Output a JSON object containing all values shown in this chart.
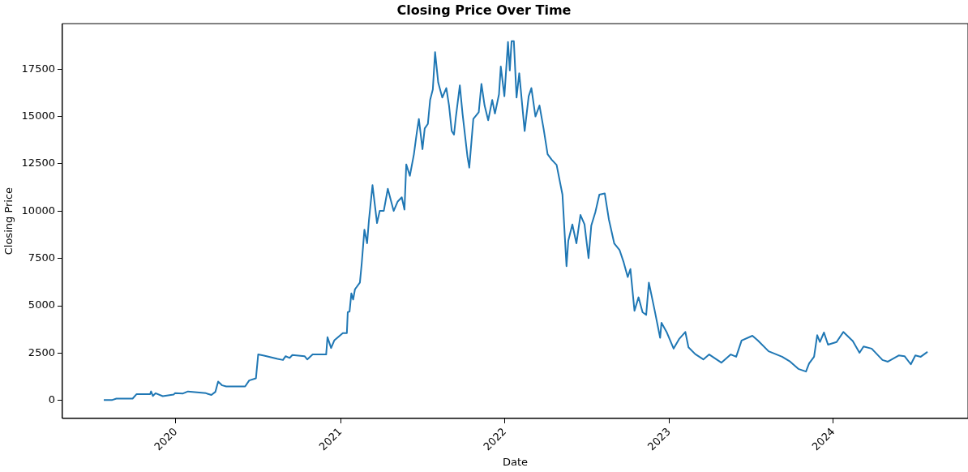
{
  "chart_data": {
    "type": "line",
    "title": "Closing Price Over Time",
    "xlabel": "Date",
    "ylabel": "Closing Price",
    "x": [
      "2019-07-25",
      "2019-08-13",
      "2019-08-22",
      "2019-09-27",
      "2019-10-06",
      "2019-11-05",
      "2019-11-07",
      "2019-11-11",
      "2019-11-17",
      "2019-12-03",
      "2019-12-27",
      "2019-12-30",
      "2020-01-17",
      "2020-01-28",
      "2020-03-08",
      "2020-03-20",
      "2020-03-29",
      "2020-04-04",
      "2020-04-13",
      "2020-04-22",
      "2020-06-03",
      "2020-06-12",
      "2020-06-27",
      "2020-07-02",
      "2020-07-15",
      "2020-08-14",
      "2020-08-26",
      "2020-09-01",
      "2020-09-10",
      "2020-09-16",
      "2020-10-13",
      "2020-10-19",
      "2020-10-31",
      "2020-11-30",
      "2020-12-03",
      "2020-12-11",
      "2020-12-18",
      "2021-01-06",
      "2021-01-15",
      "2021-01-17",
      "2021-01-21",
      "2021-01-25",
      "2021-01-29",
      "2021-02-02",
      "2021-02-13",
      "2021-02-17",
      "2021-02-23",
      "2021-03-01",
      "2021-03-05",
      "2021-03-13",
      "2021-03-23",
      "2021-03-29",
      "2021-04-07",
      "2021-04-16",
      "2021-04-29",
      "2021-05-08",
      "2021-05-17",
      "2021-05-23",
      "2021-05-27",
      "2021-06-04",
      "2021-06-13",
      "2021-06-19",
      "2021-06-24",
      "2021-07-02",
      "2021-07-07",
      "2021-07-14",
      "2021-07-19",
      "2021-07-25",
      "2021-07-30",
      "2021-08-06",
      "2021-08-15",
      "2021-08-24",
      "2021-08-30",
      "2021-09-05",
      "2021-09-10",
      "2021-09-14",
      "2021-09-20",
      "2021-09-23",
      "2021-09-29",
      "2021-10-10",
      "2021-10-14",
      "2021-10-23",
      "2021-11-04",
      "2021-11-10",
      "2021-11-17",
      "2021-11-25",
      "2021-12-04",
      "2021-12-10",
      "2021-12-19",
      "2021-12-23",
      "2021-12-31",
      "2022-01-08",
      "2022-01-12",
      "2022-01-16",
      "2022-01-21",
      "2022-01-27",
      "2022-02-02",
      "2022-02-14",
      "2022-02-23",
      "2022-03-01",
      "2022-03-10",
      "2022-03-19",
      "2022-03-28",
      "2022-04-06",
      "2022-04-15",
      "2022-04-26",
      "2022-05-09",
      "2022-05-18",
      "2022-05-22",
      "2022-05-31",
      "2022-06-09",
      "2022-06-18",
      "2022-06-27",
      "2022-07-06",
      "2022-07-12",
      "2022-07-21",
      "2022-07-30",
      "2022-08-11",
      "2022-08-20",
      "2022-09-01",
      "2022-09-13",
      "2022-09-22",
      "2022-10-01",
      "2022-10-07",
      "2022-10-16",
      "2022-10-25",
      "2022-11-03",
      "2022-11-11",
      "2022-11-17",
      "2022-11-30",
      "2022-12-12",
      "2022-12-15",
      "2022-12-27",
      "2023-01-11",
      "2023-01-23",
      "2023-02-06",
      "2023-02-13",
      "2023-02-28",
      "2023-03-18",
      "2023-03-31",
      "2023-04-27",
      "2023-05-18",
      "2023-05-30",
      "2023-06-11",
      "2023-07-05",
      "2023-07-17",
      "2023-08-10",
      "2023-09-09",
      "2023-09-27",
      "2023-10-15",
      "2023-11-01",
      "2023-11-08",
      "2023-11-19",
      "2023-11-26",
      "2023-12-02",
      "2023-12-11",
      "2023-12-20",
      "2024-01-08",
      "2024-01-23",
      "2024-02-13",
      "2024-02-28",
      "2024-03-08",
      "2024-03-26",
      "2024-04-19",
      "2024-05-01",
      "2024-05-25",
      "2024-06-07",
      "2024-06-21",
      "2024-07-01",
      "2024-07-13",
      "2024-07-28"
    ],
    "series": [
      {
        "color": "#1f77b4",
        "values": [
          30,
          30,
          100,
          100,
          340,
          340,
          480,
          240,
          385,
          230,
          310,
          385,
          370,
          480,
          385,
          290,
          460,
          1000,
          800,
          740,
          740,
          1060,
          1170,
          2430,
          2370,
          2200,
          2140,
          2340,
          2250,
          2400,
          2340,
          2170,
          2430,
          2430,
          3340,
          2770,
          3170,
          3560,
          3560,
          4660,
          4700,
          5660,
          5330,
          5870,
          6230,
          7230,
          9020,
          8300,
          9510,
          11370,
          9370,
          10010,
          10010,
          11180,
          10010,
          10510,
          10730,
          10080,
          12470,
          11870,
          13010,
          14080,
          14870,
          13270,
          14370,
          14610,
          15870,
          16430,
          18400,
          16790,
          16000,
          16500,
          15580,
          14230,
          14040,
          14930,
          16070,
          16640,
          15150,
          12870,
          12300,
          14870,
          15220,
          16720,
          15580,
          14800,
          15870,
          15150,
          16170,
          17640,
          16070,
          18930,
          17430,
          18980,
          18980,
          16000,
          17280,
          14230,
          16070,
          16500,
          15000,
          15580,
          14370,
          13010,
          12720,
          12440,
          10870,
          7090,
          8440,
          9300,
          8300,
          9800,
          9300,
          7520,
          9230,
          9940,
          10870,
          10940,
          9580,
          8300,
          7940,
          7300,
          6520,
          6940,
          4740,
          5450,
          4660,
          4520,
          6230,
          4740,
          3310,
          4100,
          3590,
          2740,
          3240,
          3620,
          2810,
          2450,
          2170,
          2430,
          2000,
          2430,
          2310,
          3170,
          3420,
          3170,
          2600,
          2310,
          2050,
          1670,
          1530,
          1960,
          2310,
          3450,
          3090,
          3590,
          2950,
          3090,
          3620,
          3140,
          2520,
          2850,
          2740,
          2140,
          2050,
          2380,
          2340,
          1910,
          2380,
          2310,
          2570
        ]
      }
    ],
    "xlim": [
      "2019-04-24",
      "2024-10-26"
    ],
    "xticks": [
      {
        "value": "2020",
        "label": "2020"
      },
      {
        "value": "2021",
        "label": "2021"
      },
      {
        "value": "2022",
        "label": "2022"
      },
      {
        "value": "2023",
        "label": "2023"
      },
      {
        "value": "2024",
        "label": "2024"
      }
    ],
    "ylim": [
      -948,
      19900
    ],
    "yticks": [
      0,
      2500,
      5000,
      7500,
      10000,
      12500,
      15000,
      17500
    ],
    "grid": false,
    "legend": false,
    "marker": "none",
    "line_style": "solid"
  }
}
